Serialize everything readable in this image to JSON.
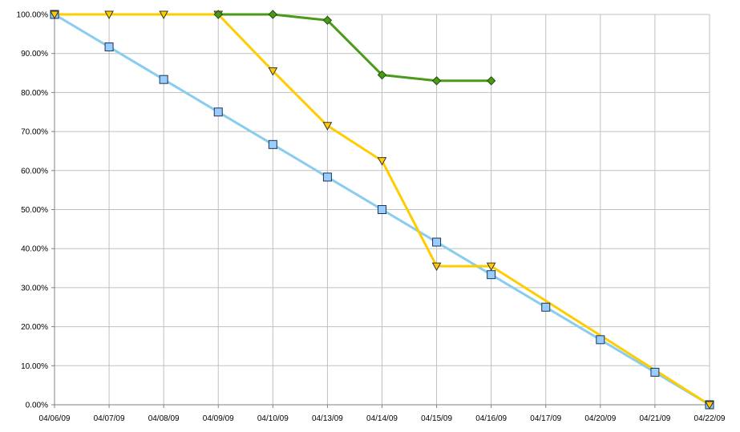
{
  "chart_data": {
    "type": "line",
    "title": "",
    "xlabel": "",
    "ylabel": "",
    "categories": [
      "04/06/09",
      "04/07/09",
      "04/08/09",
      "04/09/09",
      "04/10/09",
      "04/13/09",
      "04/14/09",
      "04/15/09",
      "04/16/09",
      "04/17/09",
      "04/20/09",
      "04/21/09",
      "04/22/09"
    ],
    "y_ticks": [
      "0.00%",
      "10.00%",
      "20.00%",
      "30.00%",
      "40.00%",
      "50.00%",
      "60.00%",
      "70.00%",
      "80.00%",
      "90.00%",
      "100.00%"
    ],
    "ylim": [
      0,
      100
    ],
    "grid": true,
    "series": [
      {
        "color": "#88ccee",
        "marker": "square",
        "marker_fill": "#99ccff",
        "values": [
          100,
          91.67,
          83.33,
          75,
          66.67,
          58.33,
          50,
          41.67,
          33.33,
          25,
          16.67,
          8.33,
          0
        ]
      },
      {
        "color": "#ffcc00",
        "marker": "triangle-down",
        "marker_fill": "#ffcc00",
        "values": [
          100,
          100,
          100,
          100,
          85.5,
          71.5,
          62.5,
          35.5,
          35.5,
          null,
          null,
          null,
          0
        ]
      },
      {
        "color": "#4a9a1a",
        "marker": "diamond",
        "marker_fill": "#4a9a1a",
        "values": [
          null,
          null,
          null,
          100,
          100,
          98.5,
          84.5,
          83,
          83,
          null,
          null,
          null,
          null
        ]
      }
    ]
  }
}
